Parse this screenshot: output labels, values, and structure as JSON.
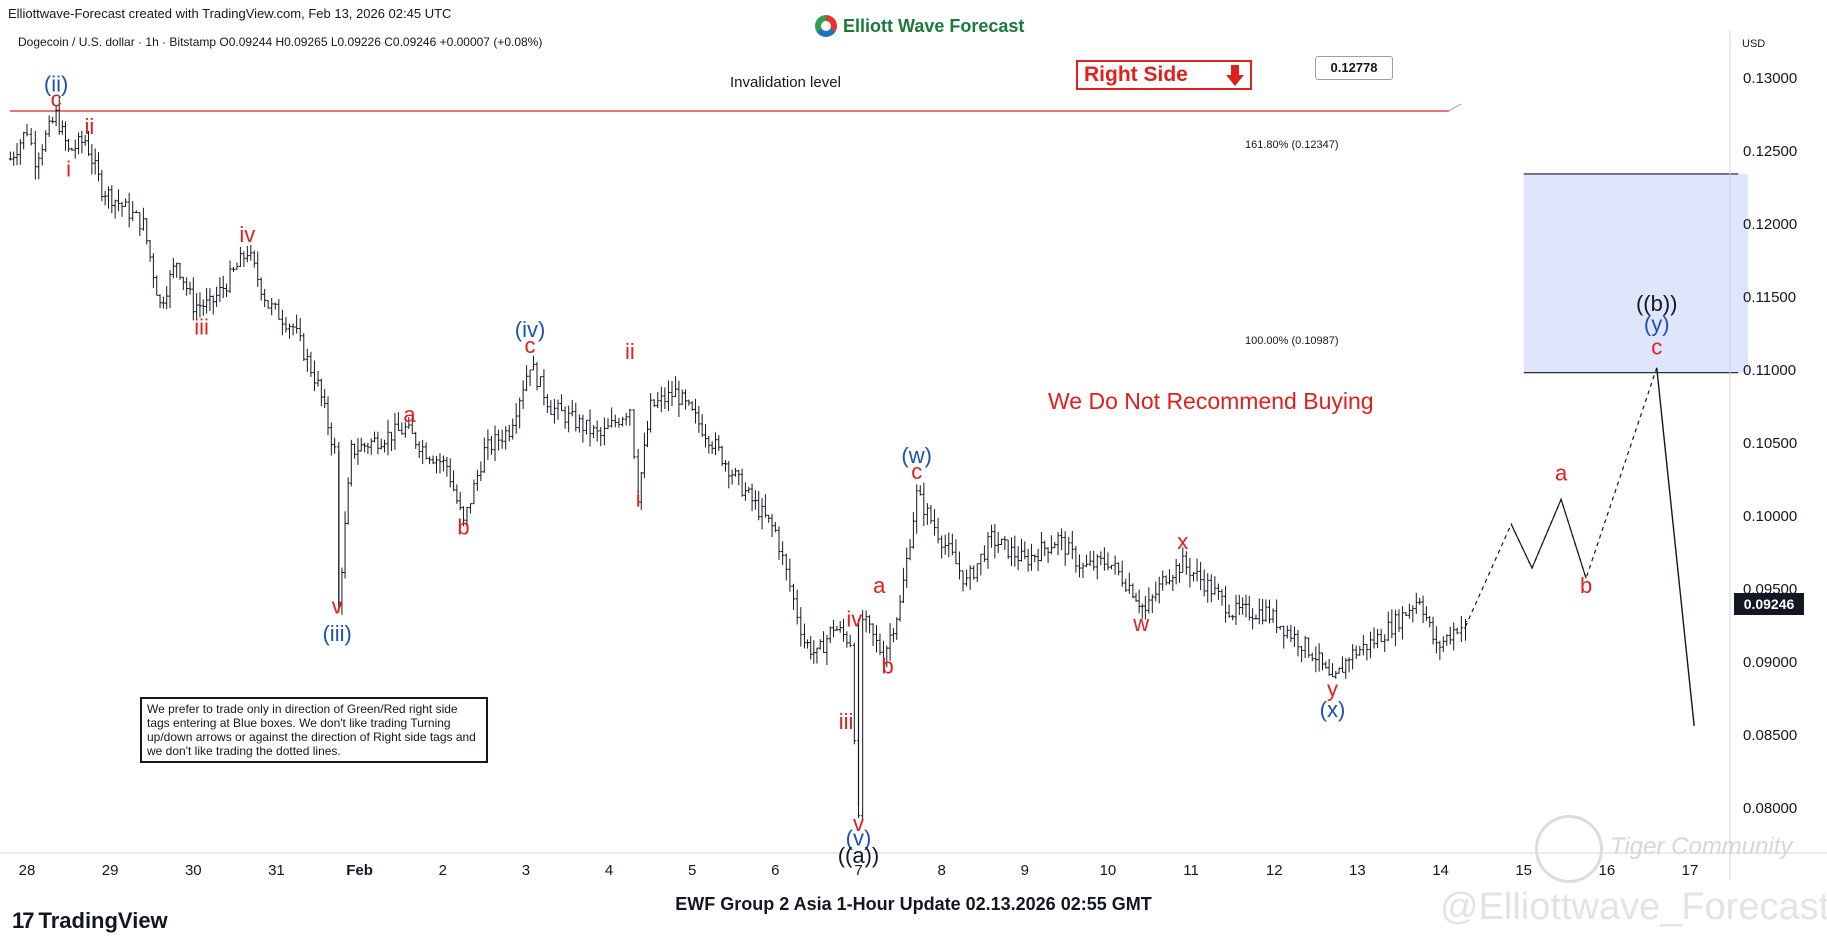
{
  "header": {
    "created_by": "Elliottwave-Forecast created with TradingView.com, Feb 13, 2026 02:45 UTC",
    "brand": "Elliott Wave Forecast",
    "symbol_line": "Dogecoin / U.S. dollar · 1h · Bitstamp  O0.09244  H0.09265  L0.09226  C0.09246  +0.00007 (+0.08%)"
  },
  "footer": {
    "title": "EWF Group 2 Asia 1-Hour Update 02.13.2026 02:55 GMT",
    "tradingview": "TradingView",
    "watermark": "@Elliottwave_Forecast",
    "community": "Tiger Community"
  },
  "annotations": {
    "invalidation": "Invalidation level",
    "invalidation_price": "0.12778",
    "right_side": "Right Side",
    "no_buy": "We Do Not Recommend Buying",
    "disclaimer": "We prefer to trade only in direction of Green/Red right side tags entering at Blue boxes. We don't like trading Turning up/down arrows or against the direction of Right side tags and we don't like trading the dotted lines.",
    "fib_161": "161.80% (0.12347)",
    "fib_100": "100.00% (0.10987)",
    "current_price": "0.09246",
    "currency": "USD"
  },
  "colors": {
    "wave_red": "#e0201d",
    "wave_blue": "#1e4fb3",
    "candle": "#131722",
    "box": "#dfe5fb"
  },
  "chart_data": {
    "type": "line",
    "instrument": "Dogecoin / U.S. dollar",
    "timeframe": "1h",
    "ylim": [
      0.077,
      0.1325
    ],
    "yticks": [
      "0.13000",
      "0.12500",
      "0.12000",
      "0.11500",
      "0.11000",
      "0.10500",
      "0.10000",
      "0.09500",
      "0.09000",
      "0.08500",
      "0.08000"
    ],
    "yticks_values": [
      0.13,
      0.125,
      0.12,
      0.115,
      0.11,
      0.105,
      0.1,
      0.095,
      0.09,
      0.085,
      0.08
    ],
    "xtick_labels": [
      "28",
      "29",
      "30",
      "31",
      "Feb",
      "2",
      "3",
      "4",
      "5",
      "6",
      "7",
      "8",
      "9",
      "10",
      "11",
      "12",
      "13",
      "14",
      "15",
      "16",
      "17"
    ],
    "xtick_days": [
      -4,
      -3,
      -2,
      -1,
      0,
      1,
      2,
      3,
      4,
      5,
      6,
      7,
      8,
      9,
      10,
      11,
      12,
      13,
      14,
      15,
      16
    ],
    "xlim_days": [
      -4.2,
      16.4
    ],
    "price_path": [
      [
        -4.2,
        0.1245
      ],
      [
        -4.0,
        0.1265
      ],
      [
        -3.9,
        0.1245
      ],
      [
        -3.65,
        0.1275
      ],
      [
        -3.5,
        0.125
      ],
      [
        -3.3,
        0.1258
      ],
      [
        -3.1,
        0.1225
      ],
      [
        -2.9,
        0.1215
      ],
      [
        -2.6,
        0.12
      ],
      [
        -2.4,
        0.1145
      ],
      [
        -2.2,
        0.1175
      ],
      [
        -2.0,
        0.1145
      ],
      [
        -1.8,
        0.1145
      ],
      [
        -1.6,
        0.116
      ],
      [
        -1.35,
        0.1182
      ],
      [
        -1.1,
        0.1145
      ],
      [
        -0.8,
        0.113
      ],
      [
        -0.5,
        0.109
      ],
      [
        -0.3,
        0.1045
      ],
      [
        -0.25,
        0.094
      ],
      [
        -0.1,
        0.1045
      ],
      [
        0.3,
        0.1055
      ],
      [
        0.55,
        0.106
      ],
      [
        0.8,
        0.1045
      ],
      [
        1.05,
        0.1035
      ],
      [
        1.25,
        0.0995
      ],
      [
        1.5,
        0.1045
      ],
      [
        1.8,
        0.106
      ],
      [
        2.05,
        0.1105
      ],
      [
        2.3,
        0.1075
      ],
      [
        2.6,
        0.1065
      ],
      [
        2.9,
        0.1055
      ],
      [
        3.25,
        0.1075
      ],
      [
        3.35,
        0.1015
      ],
      [
        3.5,
        0.1075
      ],
      [
        3.8,
        0.1085
      ],
      [
        4.2,
        0.1055
      ],
      [
        4.6,
        0.102
      ],
      [
        5.0,
        0.099
      ],
      [
        5.35,
        0.0915
      ],
      [
        5.5,
        0.0905
      ],
      [
        5.7,
        0.0925
      ],
      [
        5.9,
        0.0915
      ],
      [
        6.0,
        0.079
      ],
      [
        6.05,
        0.093
      ],
      [
        6.3,
        0.0905
      ],
      [
        6.5,
        0.094
      ],
      [
        6.7,
        0.1015
      ],
      [
        7.0,
        0.0985
      ],
      [
        7.3,
        0.0955
      ],
      [
        7.6,
        0.0985
      ],
      [
        8.0,
        0.097
      ],
      [
        8.4,
        0.0985
      ],
      [
        8.7,
        0.0965
      ],
      [
        9.0,
        0.097
      ],
      [
        9.3,
        0.095
      ],
      [
        9.45,
        0.0935
      ],
      [
        9.7,
        0.096
      ],
      [
        9.9,
        0.0968
      ],
      [
        10.2,
        0.0953
      ],
      [
        10.5,
        0.0935
      ],
      [
        10.9,
        0.0935
      ],
      [
        11.2,
        0.092
      ],
      [
        11.5,
        0.0905
      ],
      [
        11.7,
        0.0885
      ],
      [
        11.9,
        0.0905
      ],
      [
        12.2,
        0.0915
      ],
      [
        12.5,
        0.093
      ],
      [
        12.75,
        0.0945
      ],
      [
        12.95,
        0.091
      ],
      [
        13.2,
        0.0925
      ],
      [
        13.3,
        0.0925
      ]
    ],
    "projection_path": [
      [
        13.3,
        0.0925
      ],
      [
        13.85,
        0.0995
      ],
      [
        14.1,
        0.0965
      ],
      [
        14.45,
        0.1012
      ],
      [
        14.75,
        0.0958
      ],
      [
        15.6,
        0.1102
      ]
    ],
    "projection_drop": [
      [
        15.6,
        0.1102
      ],
      [
        16.05,
        0.0857
      ]
    ],
    "invalidation_level": 0.12778,
    "blue_box": {
      "x0": 14.0,
      "x1": 16.7,
      "y0": 0.10987,
      "y1": 0.12347
    },
    "fib_lines": [
      {
        "price": 0.12347,
        "label": "161.80% (0.12347)"
      },
      {
        "price": 0.10987,
        "label": "100.00% (0.10987)"
      }
    ],
    "wave_labels": [
      {
        "t": "(ii)",
        "x": -3.65,
        "p": 0.1291,
        "c": "blue"
      },
      {
        "t": "c",
        "x": -3.65,
        "p": 0.1281,
        "c": "red"
      },
      {
        "t": "ii",
        "x": -3.25,
        "p": 0.1262,
        "c": "red"
      },
      {
        "t": "i",
        "x": -3.5,
        "p": 0.1233,
        "c": "red"
      },
      {
        "t": "iv",
        "x": -1.35,
        "p": 0.1188,
        "c": "red"
      },
      {
        "t": "iii",
        "x": -1.9,
        "p": 0.1125,
        "c": "red"
      },
      {
        "t": "v",
        "x": -0.27,
        "p": 0.0934,
        "c": "red"
      },
      {
        "t": "(iii)",
        "x": -0.27,
        "p": 0.0915,
        "c": "blue"
      },
      {
        "t": "a",
        "x": 0.6,
        "p": 0.1065,
        "c": "red"
      },
      {
        "t": "b",
        "x": 1.25,
        "p": 0.0988,
        "c": "red"
      },
      {
        "t": "(iv)",
        "x": 2.05,
        "p": 0.1123,
        "c": "blue"
      },
      {
        "t": "c",
        "x": 2.05,
        "p": 0.1112,
        "c": "red"
      },
      {
        "t": "ii",
        "x": 3.25,
        "p": 0.1108,
        "c": "red"
      },
      {
        "t": "i",
        "x": 3.35,
        "p": 0.1007,
        "c": "red"
      },
      {
        "t": "(w)",
        "x": 6.7,
        "p": 0.1037,
        "c": "blue"
      },
      {
        "t": "c",
        "x": 6.7,
        "p": 0.1026,
        "c": "red"
      },
      {
        "t": "a",
        "x": 6.25,
        "p": 0.0948,
        "c": "red"
      },
      {
        "t": "b",
        "x": 6.35,
        "p": 0.0893,
        "c": "red"
      },
      {
        "t": "iv",
        "x": 5.95,
        "p": 0.0925,
        "c": "red"
      },
      {
        "t": "iii",
        "x": 5.85,
        "p": 0.0855,
        "c": "red"
      },
      {
        "t": "v",
        "x": 6.0,
        "p": 0.0785,
        "c": "red"
      },
      {
        "t": "(v)",
        "x": 6.0,
        "p": 0.0775,
        "c": "blue"
      },
      {
        "t": "((a))",
        "x": 6.0,
        "p": 0.0763,
        "c": "black"
      },
      {
        "t": "w",
        "x": 9.4,
        "p": 0.0922,
        "c": "red"
      },
      {
        "t": "x",
        "x": 9.9,
        "p": 0.0978,
        "c": "red"
      },
      {
        "t": "y",
        "x": 11.7,
        "p": 0.0877,
        "c": "red"
      },
      {
        "t": "(x)",
        "x": 11.7,
        "p": 0.0863,
        "c": "blue"
      },
      {
        "t": "a",
        "x": 14.45,
        "p": 0.1025,
        "c": "red"
      },
      {
        "t": "b",
        "x": 14.75,
        "p": 0.0948,
        "c": "red"
      },
      {
        "t": "((b))",
        "x": 15.6,
        "p": 0.1141,
        "c": "black"
      },
      {
        "t": "(y)",
        "x": 15.6,
        "p": 0.1127,
        "c": "blue"
      },
      {
        "t": "c",
        "x": 15.6,
        "p": 0.1111,
        "c": "red"
      }
    ]
  }
}
